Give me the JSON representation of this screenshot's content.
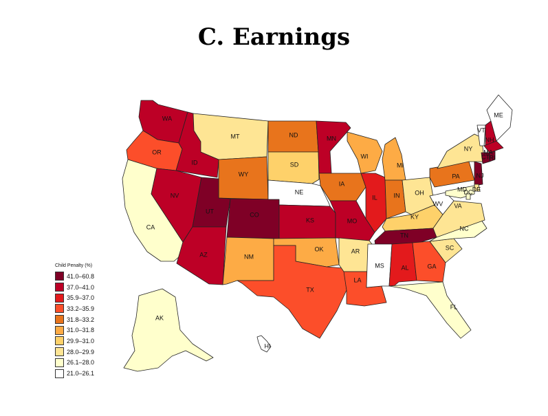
{
  "title": "C. Earnings",
  "legend": {
    "title": "Child Penalty (%)",
    "bins": [
      {
        "label": "41.0–60.8",
        "color": "#7f0026"
      },
      {
        "label": "37.0–41.0",
        "color": "#bd0026"
      },
      {
        "label": "35.9–37.0",
        "color": "#e31a1c"
      },
      {
        "label": "33.2–35.9",
        "color": "#fc4e2a"
      },
      {
        "label": "31.8–33.2",
        "color": "#e8741c"
      },
      {
        "label": "31.0–31.8",
        "color": "#fdab45"
      },
      {
        "label": "29.9–31.0",
        "color": "#fed16a"
      },
      {
        "label": "28.0–29.9",
        "color": "#fee594"
      },
      {
        "label": "26.1–28.0",
        "color": "#ffffcc"
      },
      {
        "label": "21.0–26.1",
        "color": "#ffffff"
      }
    ]
  },
  "states": {
    "WA": {
      "bin": 1
    },
    "OR": {
      "bin": 3
    },
    "CA": {
      "bin": 8
    },
    "ID": {
      "bin": 1
    },
    "NV": {
      "bin": 1
    },
    "MT": {
      "bin": 7
    },
    "WY": {
      "bin": 4
    },
    "UT": {
      "bin": 0
    },
    "AZ": {
      "bin": 1
    },
    "CO": {
      "bin": 0
    },
    "NM": {
      "bin": 5
    },
    "ND": {
      "bin": 4
    },
    "SD": {
      "bin": 6
    },
    "NE": {
      "bin": 9
    },
    "KS": {
      "bin": 1
    },
    "OK": {
      "bin": 5
    },
    "TX": {
      "bin": 3
    },
    "MN": {
      "bin": 1
    },
    "IA": {
      "bin": 4
    },
    "MO": {
      "bin": 1
    },
    "AR": {
      "bin": 7
    },
    "LA": {
      "bin": 3
    },
    "WI": {
      "bin": 5
    },
    "IL": {
      "bin": 2
    },
    "MI": {
      "bin": 5
    },
    "IN": {
      "bin": 4
    },
    "OH": {
      "bin": 7
    },
    "KY": {
      "bin": 6
    },
    "TN": {
      "bin": 0
    },
    "MS": {
      "bin": 9
    },
    "AL": {
      "bin": 2
    },
    "GA": {
      "bin": 3
    },
    "FL": {
      "bin": 8
    },
    "SC": {
      "bin": 7
    },
    "NC": {
      "bin": 8
    },
    "VA": {
      "bin": 7
    },
    "WV": {
      "bin": 9
    },
    "PA": {
      "bin": 4
    },
    "NY": {
      "bin": 7
    },
    "VT": {
      "bin": 9
    },
    "NH": {
      "bin": 1
    },
    "ME": {
      "bin": 9
    },
    "MA": {
      "bin": 1
    },
    "CT": {
      "bin": 0
    },
    "RI": {
      "bin": 0
    },
    "NJ": {
      "bin": 0
    },
    "DE": {
      "bin": 7
    },
    "MD": {
      "bin": 8
    },
    "DC": {
      "bin": 8
    },
    "AK": {
      "bin": 8
    },
    "HI": {
      "bin": 9
    }
  }
}
